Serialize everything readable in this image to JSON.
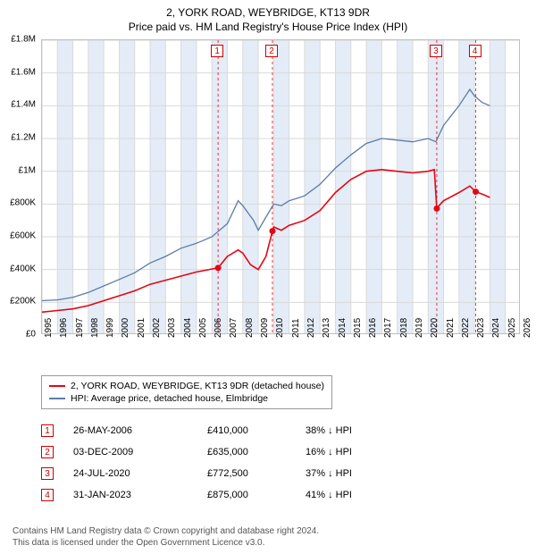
{
  "title_line1": "2, YORK ROAD, WEYBRIDGE, KT13 9DR",
  "title_line2": "Price paid vs. HM Land Registry's House Price Index (HPI)",
  "chart": {
    "type": "line",
    "background_color": "#ffffff",
    "grid_color": "#d9d9d9",
    "band_color": "#e4ecf7",
    "border_color": "#bfbfbf",
    "xlim": [
      1995,
      2026
    ],
    "ylim": [
      0,
      1800000
    ],
    "ytick_step": 200000,
    "y_ticks": [
      "£0",
      "£200K",
      "£400K",
      "£600K",
      "£800K",
      "£1M",
      "£1.2M",
      "£1.4M",
      "£1.6M",
      "£1.8M"
    ],
    "x_ticks": [
      1995,
      1996,
      1997,
      1998,
      1999,
      2000,
      2001,
      2002,
      2003,
      2004,
      2005,
      2006,
      2007,
      2008,
      2009,
      2010,
      2011,
      2012,
      2013,
      2014,
      2015,
      2016,
      2017,
      2018,
      2019,
      2020,
      2021,
      2022,
      2023,
      2024,
      2025,
      2026
    ],
    "series": [
      {
        "name": "property_price",
        "label": "2, YORK ROAD, WEYBRIDGE, KT13 9DR (detached house)",
        "color": "#e30613",
        "line_width": 1.6,
        "data": [
          [
            1995,
            140000
          ],
          [
            1996,
            150000
          ],
          [
            1997,
            160000
          ],
          [
            1998,
            180000
          ],
          [
            1999,
            210000
          ],
          [
            2000,
            240000
          ],
          [
            2001,
            270000
          ],
          [
            2002,
            310000
          ],
          [
            2003,
            335000
          ],
          [
            2004,
            360000
          ],
          [
            2005,
            385000
          ],
          [
            2006.4,
            410000
          ],
          [
            2007,
            480000
          ],
          [
            2007.7,
            520000
          ],
          [
            2008,
            500000
          ],
          [
            2008.5,
            430000
          ],
          [
            2009,
            400000
          ],
          [
            2009.5,
            480000
          ],
          [
            2009.92,
            635000
          ],
          [
            2010,
            660000
          ],
          [
            2010.5,
            640000
          ],
          [
            2011,
            670000
          ],
          [
            2012,
            700000
          ],
          [
            2013,
            760000
          ],
          [
            2014,
            870000
          ],
          [
            2015,
            950000
          ],
          [
            2016,
            1000000
          ],
          [
            2017,
            1010000
          ],
          [
            2018,
            1000000
          ],
          [
            2019,
            990000
          ],
          [
            2020,
            1000000
          ],
          [
            2020.4,
            1010000
          ],
          [
            2020.56,
            772500
          ],
          [
            2020.7,
            790000
          ],
          [
            2021,
            820000
          ],
          [
            2022,
            870000
          ],
          [
            2022.7,
            910000
          ],
          [
            2023.08,
            875000
          ],
          [
            2023.5,
            860000
          ],
          [
            2024,
            840000
          ]
        ],
        "markers": [
          {
            "id": "1",
            "x": 2006.4,
            "y": 410000
          },
          {
            "id": "2",
            "x": 2009.92,
            "y": 635000
          },
          {
            "id": "3",
            "x": 2020.56,
            "y": 772500
          },
          {
            "id": "4",
            "x": 2023.08,
            "y": 875000
          }
        ]
      },
      {
        "name": "hpi",
        "label": "HPI: Average price, detached house, Elmbridge",
        "color": "#5b7ca8",
        "line_width": 1.3,
        "data": [
          [
            1995,
            210000
          ],
          [
            1996,
            215000
          ],
          [
            1997,
            230000
          ],
          [
            1998,
            260000
          ],
          [
            1999,
            300000
          ],
          [
            2000,
            340000
          ],
          [
            2001,
            380000
          ],
          [
            2002,
            440000
          ],
          [
            2003,
            480000
          ],
          [
            2004,
            530000
          ],
          [
            2005,
            560000
          ],
          [
            2006,
            600000
          ],
          [
            2007,
            680000
          ],
          [
            2007.7,
            820000
          ],
          [
            2008,
            790000
          ],
          [
            2008.7,
            700000
          ],
          [
            2009,
            640000
          ],
          [
            2009.5,
            720000
          ],
          [
            2010,
            800000
          ],
          [
            2010.5,
            790000
          ],
          [
            2011,
            820000
          ],
          [
            2012,
            850000
          ],
          [
            2013,
            920000
          ],
          [
            2014,
            1020000
          ],
          [
            2015,
            1100000
          ],
          [
            2016,
            1170000
          ],
          [
            2017,
            1200000
          ],
          [
            2018,
            1190000
          ],
          [
            2019,
            1180000
          ],
          [
            2020,
            1200000
          ],
          [
            2020.5,
            1180000
          ],
          [
            2021,
            1280000
          ],
          [
            2022,
            1400000
          ],
          [
            2022.7,
            1500000
          ],
          [
            2023,
            1460000
          ],
          [
            2023.5,
            1420000
          ],
          [
            2024,
            1400000
          ]
        ]
      }
    ]
  },
  "legend": [
    {
      "color": "#e30613",
      "label": "2, YORK ROAD, WEYBRIDGE, KT13 9DR (detached house)"
    },
    {
      "color": "#5b7ca8",
      "label": "HPI: Average price, detached house, Elmbridge"
    }
  ],
  "sales": [
    {
      "id": "1",
      "date": "26-MAY-2006",
      "price": "£410,000",
      "delta": "38% ↓ HPI"
    },
    {
      "id": "2",
      "date": "03-DEC-2009",
      "price": "£635,000",
      "delta": "16% ↓ HPI"
    },
    {
      "id": "3",
      "date": "24-JUL-2020",
      "price": "£772,500",
      "delta": "37% ↓ HPI"
    },
    {
      "id": "4",
      "date": "31-JAN-2023",
      "price": "£875,000",
      "delta": "41% ↓ HPI"
    }
  ],
  "sale_box_color": "#cc0000",
  "footer_line1": "Contains HM Land Registry data © Crown copyright and database right 2024.",
  "footer_line2": "This data is licensed under the Open Government Licence v3.0."
}
